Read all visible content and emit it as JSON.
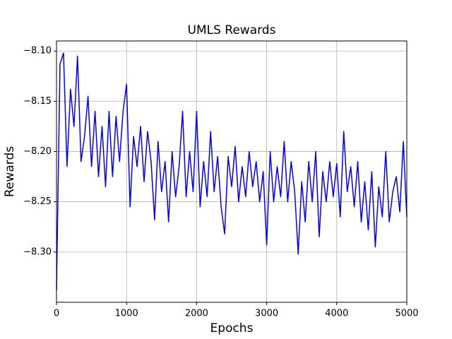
{
  "chart_data": {
    "type": "line",
    "title": "UMLS Rewards",
    "x_label": "Epochs",
    "y_label": "Rewards",
    "x": [
      0,
      50,
      100,
      150,
      200,
      250,
      300,
      350,
      400,
      450,
      500,
      550,
      600,
      650,
      700,
      750,
      800,
      850,
      900,
      950,
      1000,
      1050,
      1100,
      1150,
      1200,
      1250,
      1300,
      1350,
      1400,
      1450,
      1500,
      1550,
      1600,
      1650,
      1700,
      1750,
      1800,
      1850,
      1900,
      1950,
      2000,
      2050,
      2100,
      2150,
      2200,
      2250,
      2300,
      2350,
      2400,
      2450,
      2500,
      2550,
      2600,
      2650,
      2700,
      2750,
      2800,
      2850,
      2900,
      2950,
      3000,
      3050,
      3100,
      3150,
      3200,
      3250,
      3300,
      3350,
      3400,
      3450,
      3500,
      3550,
      3600,
      3650,
      3700,
      3750,
      3800,
      3850,
      3900,
      3950,
      4000,
      4050,
      4100,
      4150,
      4200,
      4250,
      4300,
      4350,
      4400,
      4450,
      4500,
      4550,
      4600,
      4650,
      4700,
      4750,
      4800,
      4850,
      4900,
      4950,
      5000
    ],
    "series": [
      {
        "name": "UMLS Rewards",
        "color": "#0000ff",
        "values": [
          -8.338,
          -8.113,
          -8.102,
          -8.215,
          -8.138,
          -8.175,
          -8.105,
          -8.21,
          -8.185,
          -8.145,
          -8.215,
          -8.16,
          -8.225,
          -8.175,
          -8.235,
          -8.16,
          -8.225,
          -8.165,
          -8.21,
          -8.16,
          -8.133,
          -8.255,
          -8.185,
          -8.215,
          -8.175,
          -8.23,
          -8.18,
          -8.21,
          -8.268,
          -8.19,
          -8.24,
          -8.21,
          -8.27,
          -8.2,
          -8.245,
          -8.215,
          -8.16,
          -8.245,
          -8.2,
          -8.24,
          -8.16,
          -8.255,
          -8.21,
          -8.245,
          -8.18,
          -8.24,
          -8.205,
          -8.255,
          -8.282,
          -8.205,
          -8.235,
          -8.195,
          -8.25,
          -8.215,
          -8.245,
          -8.2,
          -8.235,
          -8.21,
          -8.25,
          -8.22,
          -8.293,
          -8.2,
          -8.25,
          -8.215,
          -8.245,
          -8.19,
          -8.25,
          -8.21,
          -8.24,
          -8.302,
          -8.23,
          -8.27,
          -8.21,
          -8.25,
          -8.2,
          -8.285,
          -8.22,
          -8.25,
          -8.21,
          -8.245,
          -8.212,
          -8.265,
          -8.18,
          -8.24,
          -8.215,
          -8.255,
          -8.21,
          -8.27,
          -8.23,
          -8.278,
          -8.22,
          -8.295,
          -8.235,
          -8.265,
          -8.2,
          -8.27,
          -8.24,
          -8.225,
          -8.26,
          -8.19,
          -8.265
        ]
      }
    ],
    "xlim": [
      0,
      5000
    ],
    "xticks": [
      0,
      1000,
      2000,
      3000,
      4000,
      5000
    ],
    "ylim": [
      -8.35,
      -8.09
    ],
    "yticks": [
      {
        "value": -8.3,
        "label": "−8.30"
      },
      {
        "value": -8.25,
        "label": "−8.25"
      },
      {
        "value": -8.2,
        "label": "−8.20"
      },
      {
        "value": -8.15,
        "label": "−8.15"
      },
      {
        "value": -8.1,
        "label": "−8.10"
      }
    ],
    "grid": true
  }
}
